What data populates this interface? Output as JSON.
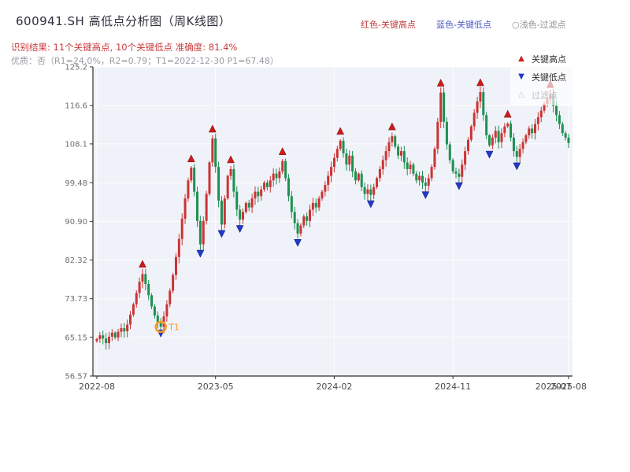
{
  "window": {
    "title": "600941.SH 高低点分析图（周K线图）"
  },
  "header": {
    "legend_inline": [
      {
        "label": "红色-关键高点",
        "color": "#c43c3c"
      },
      {
        "label": "蓝色-关键低点",
        "color": "#4c5bc8"
      },
      {
        "label": "○浅色-过滤点",
        "color": "#8f8f96"
      }
    ],
    "result_line": "识别结果: 11个关键高点, 10个关键低点  准确度: 81.4%",
    "quality_line": "优质：否（R1=24.0%，R2=0.79；T1=2022-12-30 P1=67.48）"
  },
  "stats": {
    "key_high_count": 11,
    "key_low_count": 10,
    "accuracy": "81.4%",
    "premium": "否",
    "R1": "24.0%",
    "R2": "0.79",
    "T1_date": "2022-12-30",
    "P1": "67.48"
  },
  "legend_box": {
    "items": [
      {
        "label": "关键高点",
        "glyph": "▲",
        "marker": "triangle-up",
        "color": "#cc1f1f"
      },
      {
        "label": "关键低点",
        "glyph": "▼",
        "marker": "triangle-down",
        "color": "#2238c8"
      },
      {
        "label": "过滤点",
        "glyph": "△",
        "marker": "triangle-up-outline",
        "color": "#c6c6cc"
      }
    ]
  },
  "chart_data": {
    "type": "candlestick",
    "title": "600941.SH 高低点分析图（周K线图）",
    "xlabel": "",
    "ylabel": "",
    "ylim": [
      56.57,
      125.2
    ],
    "y_ticks": [
      "56.57",
      "65.15",
      "73.73",
      "82.32",
      "90.90",
      "99.48",
      "108.1",
      "116.6",
      "125.2"
    ],
    "x_ticks": [
      {
        "week": 0,
        "label": "2022-08"
      },
      {
        "week": 39,
        "label": "2023-05"
      },
      {
        "week": 78,
        "label": "2024-02"
      },
      {
        "week": 117,
        "label": "2024-11"
      },
      {
        "week": 155,
        "label": "2025-08"
      }
    ],
    "x_tick_extra": {
      "week": 150,
      "label": "2025-07"
    },
    "plot_bg": "#f0f2f9",
    "grid_color": "#ffffff",
    "axis_color": "#2f2f2f",
    "up_color": "#cc3333",
    "down_color": "#1d9050",
    "key_high_color": "#cc1b1b",
    "key_low_color": "#2238c8",
    "closes": [
      64.8,
      65.6,
      64.9,
      63.9,
      65.3,
      66.2,
      65.1,
      66.4,
      67.2,
      66.5,
      68.0,
      70.2,
      72.5,
      75.0,
      77.5,
      79.2,
      77.0,
      74.5,
      72.0,
      70.0,
      68.3,
      67.5,
      69.8,
      72.5,
      75.5,
      79.0,
      83.0,
      87.0,
      91.5,
      96.0,
      100.0,
      102.8,
      97.5,
      91.0,
      85.8,
      91.0,
      97.0,
      104.0,
      109.3,
      103.0,
      95.5,
      90.2,
      96.0,
      101.0,
      102.5,
      97.5,
      93.5,
      91.3,
      93.0,
      95.0,
      94.0,
      96.0,
      97.5,
      96.5,
      98.0,
      99.5,
      98.5,
      100.0,
      101.5,
      100.5,
      102.0,
      104.3,
      100.5,
      96.5,
      93.0,
      90.5,
      88.2,
      90.0,
      92.0,
      91.0,
      93.5,
      95.0,
      94.0,
      96.0,
      97.5,
      99.0,
      101.0,
      103.0,
      105.0,
      107.0,
      108.8,
      106.0,
      103.5,
      105.5,
      102.0,
      100.0,
      101.5,
      98.5,
      97.0,
      98.0,
      96.8,
      98.5,
      100.5,
      102.5,
      104.5,
      106.5,
      108.5,
      109.8,
      107.5,
      105.5,
      106.5,
      104.0,
      102.5,
      103.5,
      101.5,
      100.0,
      101.0,
      99.5,
      98.8,
      100.5,
      103.0,
      107.0,
      113.0,
      119.5,
      113.0,
      108.0,
      104.5,
      102.0,
      101.5,
      100.8,
      103.5,
      106.5,
      109.0,
      112.0,
      115.0,
      117.5,
      119.6,
      114.5,
      110.0,
      107.8,
      109.5,
      111.0,
      108.5,
      110.5,
      112.0,
      112.6,
      109.5,
      106.5,
      105.2,
      107.0,
      108.5,
      110.0,
      111.5,
      110.5,
      112.5,
      114.0,
      115.5,
      117.0,
      118.0,
      119.2,
      116.5,
      114.5,
      112.5,
      110.5,
      109.5,
      108.3
    ],
    "key_highs": [
      {
        "i": 15,
        "price": 80.0
      },
      {
        "i": 31,
        "price": 103.4
      },
      {
        "i": 38,
        "price": 110.0
      },
      {
        "i": 44,
        "price": 103.2
      },
      {
        "i": 61,
        "price": 105.0
      },
      {
        "i": 80,
        "price": 109.5
      },
      {
        "i": 97,
        "price": 110.5
      },
      {
        "i": 113,
        "price": 120.2
      },
      {
        "i": 126,
        "price": 120.3
      },
      {
        "i": 135,
        "price": 113.3
      },
      {
        "i": 149,
        "price": 119.9
      }
    ],
    "key_lows": [
      {
        "i": 21,
        "price": 67.48
      },
      {
        "i": 34,
        "price": 85.2
      },
      {
        "i": 41,
        "price": 89.6
      },
      {
        "i": 47,
        "price": 90.7
      },
      {
        "i": 66,
        "price": 87.6
      },
      {
        "i": 90,
        "price": 96.2
      },
      {
        "i": 108,
        "price": 98.2
      },
      {
        "i": 119,
        "price": 100.2
      },
      {
        "i": 129,
        "price": 107.2
      },
      {
        "i": 138,
        "price": 104.6
      }
    ],
    "t1": {
      "i": 21,
      "price": 67.48,
      "label": "T1",
      "color": "#f59a23"
    }
  }
}
